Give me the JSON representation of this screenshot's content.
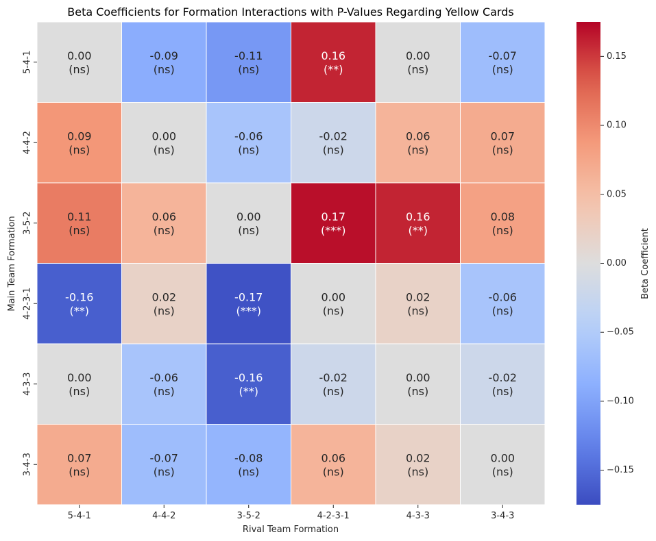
{
  "chart_data": {
    "type": "heatmap",
    "title": "Beta Coefficients for Formation Interactions with P-Values Regarding Yellow Cards",
    "xlabel": "Rival Team Formation",
    "ylabel": "Main Team Formation",
    "x_categories": [
      "5-4-1",
      "4-4-2",
      "3-5-2",
      "4-2-3-1",
      "4-3-3",
      "3-4-3"
    ],
    "y_categories": [
      "5-4-1",
      "4-4-2",
      "3-5-2",
      "4-2-3-1",
      "4-3-3",
      "3-4-3"
    ],
    "values": [
      [
        0.0,
        -0.09,
        -0.11,
        0.16,
        0.0,
        -0.07
      ],
      [
        0.09,
        0.0,
        -0.06,
        -0.02,
        0.06,
        0.07
      ],
      [
        0.11,
        0.06,
        0.0,
        0.17,
        0.16,
        0.08
      ],
      [
        -0.16,
        0.02,
        -0.17,
        0.0,
        0.02,
        -0.06
      ],
      [
        0.0,
        -0.06,
        -0.16,
        -0.02,
        0.0,
        -0.02
      ],
      [
        0.07,
        -0.07,
        -0.08,
        0.06,
        0.02,
        0.0
      ]
    ],
    "value_labels": [
      [
        "0.00",
        "-0.09",
        "-0.11",
        "0.16",
        "0.00",
        "-0.07"
      ],
      [
        "0.09",
        "0.00",
        "-0.06",
        "-0.02",
        "0.06",
        "0.07"
      ],
      [
        "0.11",
        "0.06",
        "0.00",
        "0.17",
        "0.16",
        "0.08"
      ],
      [
        "-0.16",
        "0.02",
        "-0.17",
        "0.00",
        "0.02",
        "-0.06"
      ],
      [
        "0.00",
        "-0.06",
        "-0.16",
        "-0.02",
        "0.00",
        "-0.02"
      ],
      [
        "0.07",
        "-0.07",
        "-0.08",
        "0.06",
        "0.02",
        "0.00"
      ]
    ],
    "significance": [
      [
        "(ns)",
        "(ns)",
        "(ns)",
        "(**)",
        "(ns)",
        "(ns)"
      ],
      [
        "(ns)",
        "(ns)",
        "(ns)",
        "(ns)",
        "(ns)",
        "(ns)"
      ],
      [
        "(ns)",
        "(ns)",
        "(ns)",
        "(***)",
        "(**)",
        "(ns)"
      ],
      [
        "(**)",
        "(ns)",
        "(***)",
        "(ns)",
        "(ns)",
        "(ns)"
      ],
      [
        "(ns)",
        "(ns)",
        "(**)",
        "(ns)",
        "(ns)",
        "(ns)"
      ],
      [
        "(ns)",
        "(ns)",
        "(ns)",
        "(ns)",
        "(ns)",
        "(ns)"
      ]
    ],
    "color_range": [
      -0.175,
      0.175
    ],
    "colormap": "coolwarm",
    "colorbar": {
      "label": "Beta Coefficient",
      "ticks": [
        0.15,
        0.1,
        0.05,
        0.0,
        -0.05,
        -0.1,
        -0.15
      ],
      "tick_labels": [
        "0.15",
        "0.10",
        "0.05",
        "0.00",
        "−0.05",
        "−0.10",
        "−0.15"
      ]
    }
  }
}
